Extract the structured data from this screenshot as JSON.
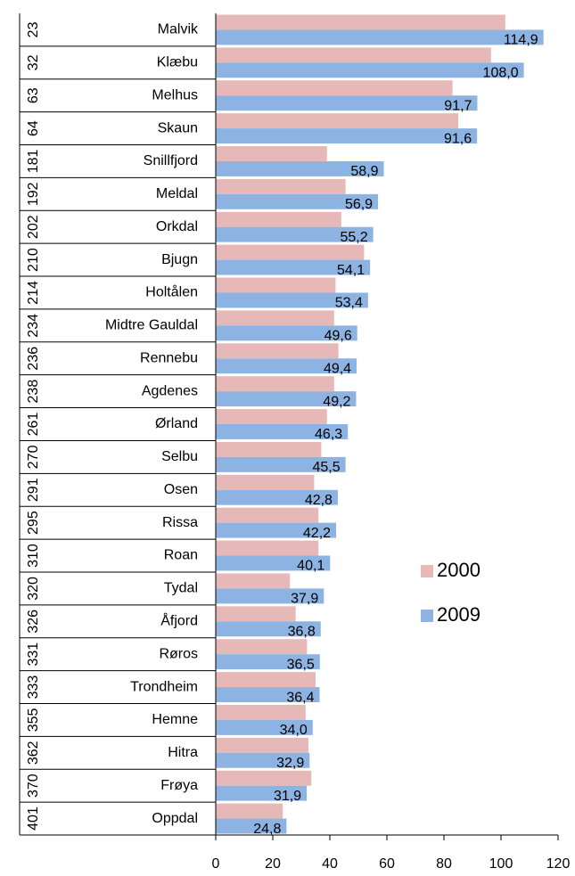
{
  "chart_data": {
    "type": "hbar",
    "ranks": [
      23,
      32,
      63,
      64,
      181,
      192,
      202,
      210,
      214,
      234,
      236,
      238,
      261,
      270,
      291,
      295,
      310,
      320,
      326,
      331,
      333,
      355,
      362,
      370,
      401
    ],
    "categories": [
      "Malvik",
      "Klæbu",
      "Melhus",
      "Skaun",
      "Snillfjord",
      "Meldal",
      "Orkdal",
      "Bjugn",
      "Holtålen",
      "Midtre Gauldal",
      "Rennebu",
      "Agdenes",
      "Ørland",
      "Selbu",
      "Osen",
      "Rissa",
      "Roan",
      "Tydal",
      "Åfjord",
      "Røros",
      "Trondheim",
      "Hemne",
      "Hitra",
      "Frøya",
      "Oppdal"
    ],
    "series": [
      {
        "name": "2000",
        "color": "#e6b9b8",
        "values": [
          101.5,
          96.5,
          83,
          85,
          39,
          45.5,
          44,
          52,
          42,
          41.5,
          43,
          41.5,
          39,
          37,
          34.5,
          36,
          36,
          26,
          28,
          32,
          35,
          31.5,
          32.5,
          33.5,
          23.5
        ]
      },
      {
        "name": "2009",
        "color": "#8db3e2",
        "values": [
          114.9,
          108.0,
          91.7,
          91.6,
          58.9,
          56.9,
          55.2,
          54.1,
          53.4,
          49.6,
          49.4,
          49.2,
          46.3,
          45.5,
          42.8,
          42.2,
          40.1,
          37.9,
          36.8,
          36.5,
          36.4,
          34.0,
          32.9,
          31.9,
          24.8
        ],
        "value_labels": [
          "114,9",
          "108,0",
          "91,7",
          "91,6",
          "58,9",
          "56,9",
          "55,2",
          "54,1",
          "53,4",
          "49,6",
          "49,4",
          "49,2",
          "46,3",
          "45,5",
          "42,8",
          "42,2",
          "40,1",
          "37,9",
          "36,8",
          "36,5",
          "36,4",
          "34,0",
          "32,9",
          "31,9",
          "24,8"
        ]
      }
    ],
    "xlim": [
      0,
      120
    ],
    "xticks": [
      0,
      20,
      40,
      60,
      80,
      100,
      120
    ],
    "legend": "right"
  }
}
